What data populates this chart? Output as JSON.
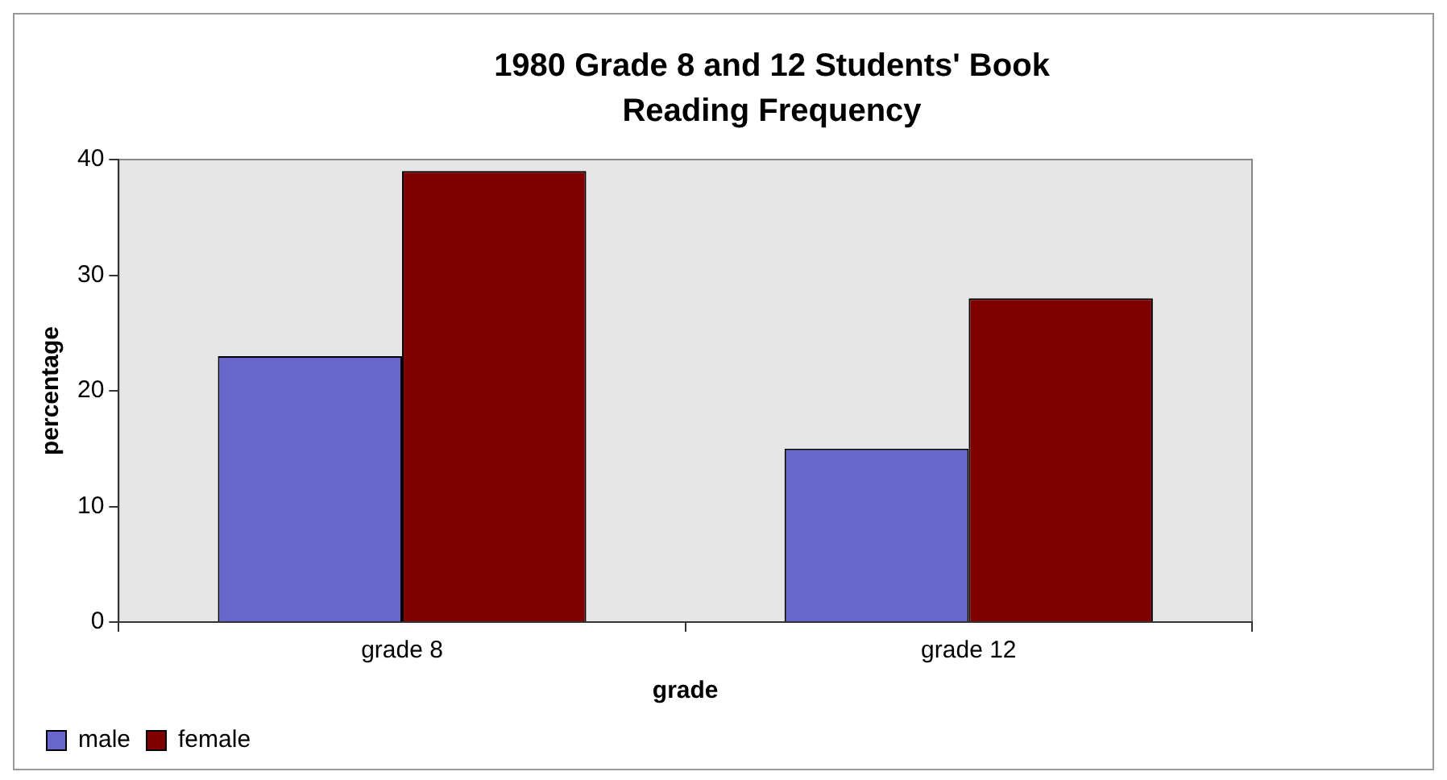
{
  "chart_data": {
    "type": "bar",
    "title": "1980 Grade 8 and 12 Students' Book Reading Frequency",
    "xlabel": "grade",
    "ylabel": "percentage",
    "categories": [
      "grade 8",
      "grade 12"
    ],
    "series": [
      {
        "name": "male",
        "color": "#6666cc",
        "values": [
          23,
          15
        ]
      },
      {
        "name": "female",
        "color": "#800000",
        "values": [
          39,
          28
        ]
      }
    ],
    "ylim": [
      0,
      40
    ],
    "yticks": [
      0,
      10,
      20,
      30,
      40
    ],
    "grid": false,
    "legend": "bottom left"
  }
}
